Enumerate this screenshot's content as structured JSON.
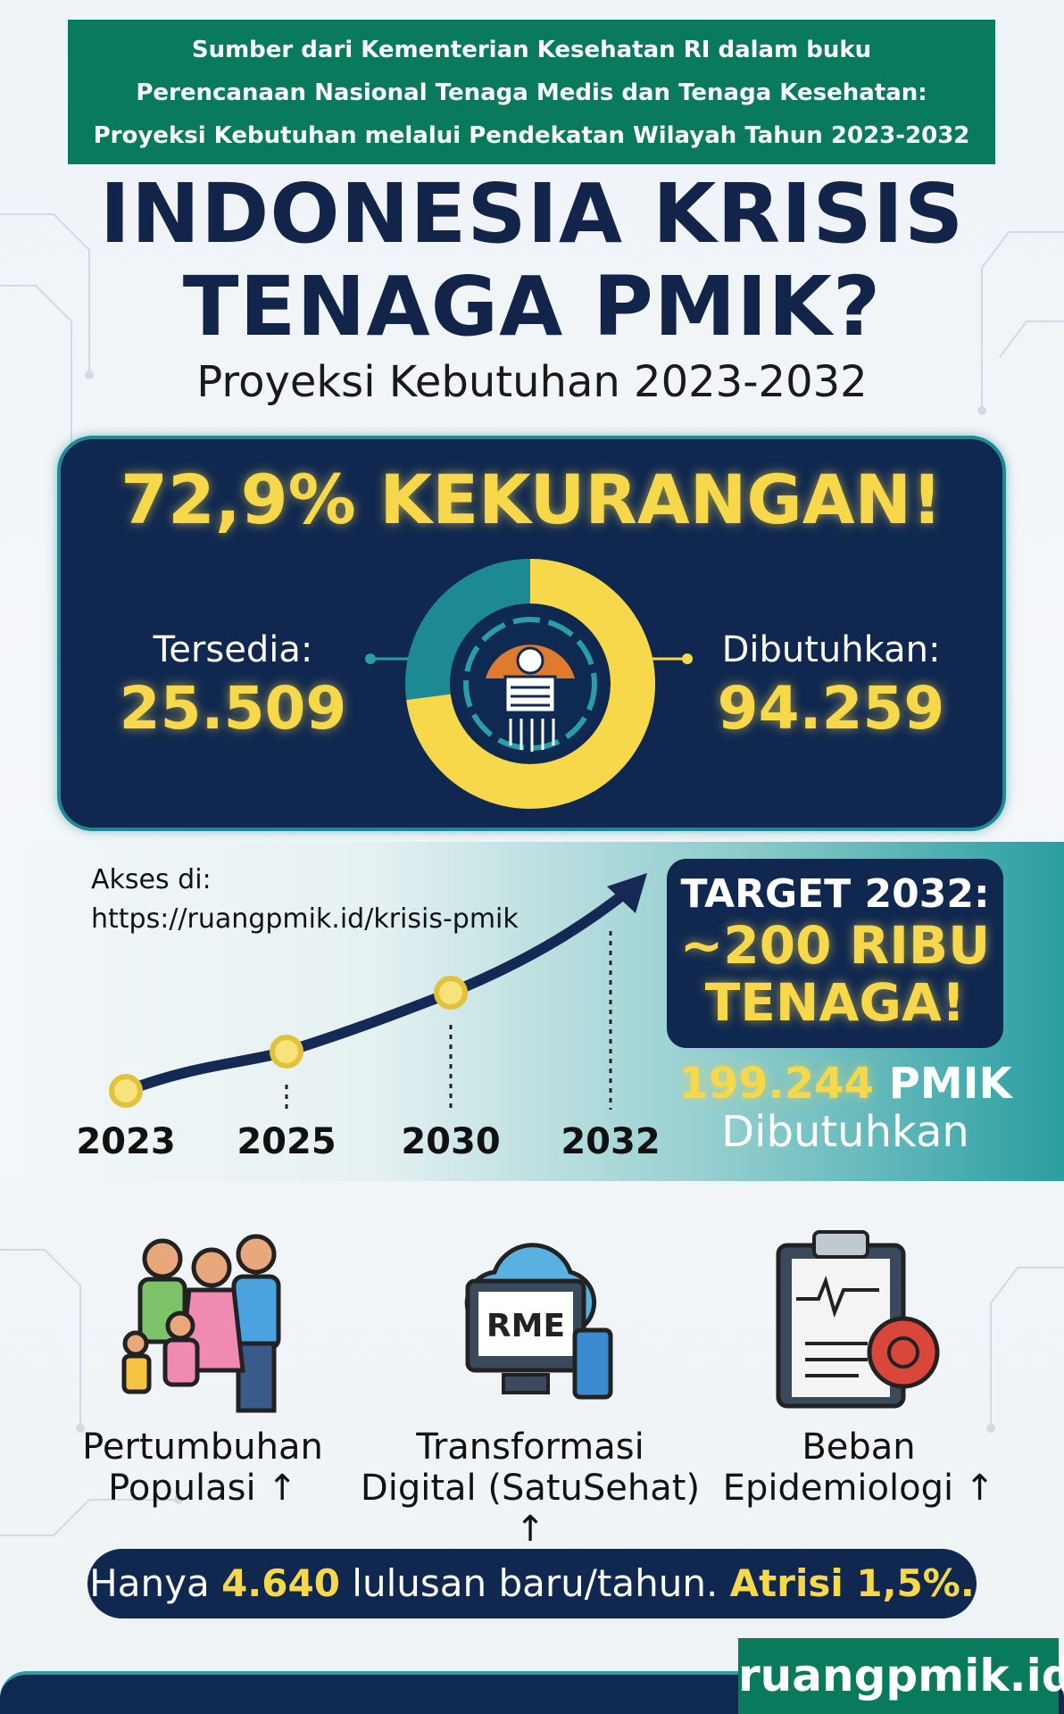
{
  "source_banner": {
    "lines": [
      "Sumber dari Kementerian Kesehatan RI dalam buku",
      "Perencanaan Nasional Tenaga Medis dan Tenaga Kesehatan:",
      "Proyeksi Kebutuhan melalui Pendekatan Wilayah Tahun 2023-2032"
    ]
  },
  "title": {
    "line1": "INDONESIA KRISIS",
    "line2": "TENAGA PMIK?"
  },
  "subtitle": "Proyeksi Kebutuhan 2023-2032",
  "shortage": {
    "headline_percent": "72,9%",
    "headline_word": "KEKURANGAN!",
    "available_label": "Tersedia:",
    "available_value": "25.509",
    "needed_label": "Dibutuhkan:",
    "needed_value": "94.259",
    "shortage_fraction": 0.729
  },
  "access": {
    "label": "Akses di:",
    "url": "https://ruangpmik.id/krisis-pmik"
  },
  "timeline": {
    "years": [
      "2023",
      "2025",
      "2030",
      "2032"
    ]
  },
  "target": {
    "line1": "TARGET 2032:",
    "line2": "~200 RIBU",
    "line3": "TENAGA!",
    "number": "199.244",
    "unit": "PMIK",
    "needed": "Dibutuhkan"
  },
  "factors": [
    {
      "icon": "family-icon",
      "line1": "Pertumbuhan",
      "line2": "Populasi ↑"
    },
    {
      "icon": "cloud-computer-icon",
      "screen_text": "RME",
      "line1": "Transformasi",
      "line2": "Digital (SatuSehat) ↑"
    },
    {
      "icon": "clipboard-virus-icon",
      "line1": "Beban",
      "line2": "Epidemiologi ↑"
    }
  ],
  "footer_pill": {
    "pre": "Hanya",
    "graduates": "4.640",
    "mid": "lulusan baru/tahun.",
    "attrition": "Atrisi 1,5%."
  },
  "brand": "ruangpmik.id",
  "colors": {
    "navy": "#102850",
    "yellow": "#f8d84b",
    "green": "#0a7a5c",
    "teal": "#2a9ea1"
  }
}
